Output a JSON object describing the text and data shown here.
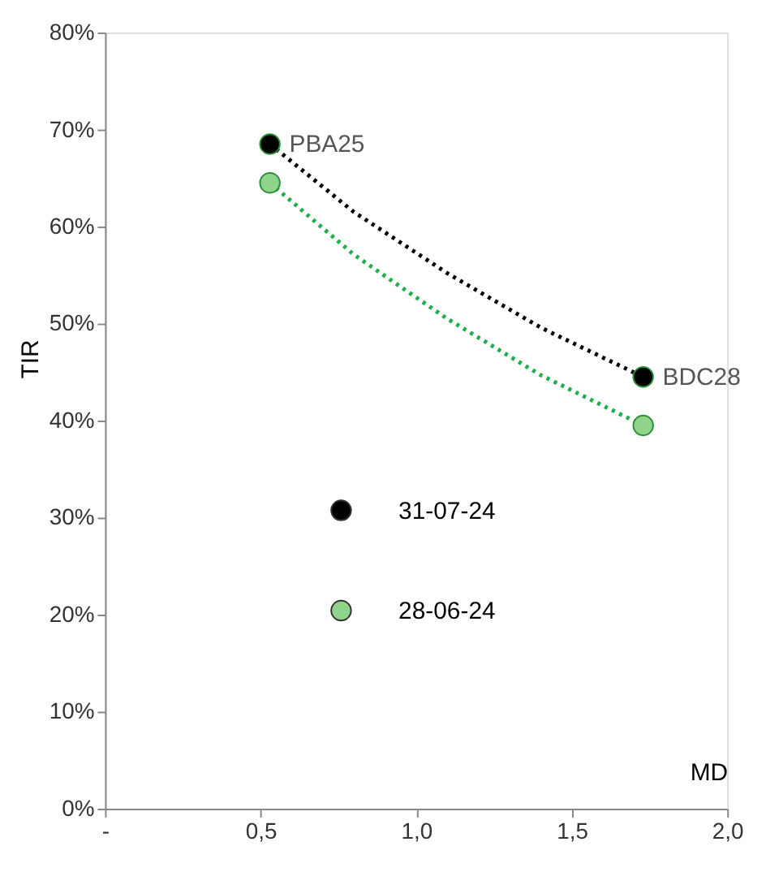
{
  "chart_data": {
    "type": "scatter",
    "xlabel": "MD",
    "ylabel": "TIR",
    "xlim": [
      0,
      2
    ],
    "xticks": [
      {
        "value": 0,
        "label": "-"
      },
      {
        "value": 0.5,
        "label": "0,5"
      },
      {
        "value": 1,
        "label": "1,0"
      },
      {
        "value": 1.5,
        "label": "1,5"
      },
      {
        "value": 2,
        "label": "2,0"
      }
    ],
    "ylim": [
      0,
      80
    ],
    "yticks": [
      {
        "value": 0,
        "label": "0%"
      },
      {
        "value": 10,
        "label": "10%"
      },
      {
        "value": 20,
        "label": "20%"
      },
      {
        "value": 30,
        "label": "30%"
      },
      {
        "value": 40,
        "label": "40%"
      },
      {
        "value": 50,
        "label": "50%"
      },
      {
        "value": 60,
        "label": "60%"
      },
      {
        "value": 70,
        "label": "70%"
      },
      {
        "value": 80,
        "label": "80%"
      }
    ],
    "grid": false,
    "legend": "bottom left",
    "series": [
      {
        "type": "line",
        "color": "#000000",
        "line_style": "dotted",
        "marker": "none",
        "x": [
          0.53,
          0.8,
          1.1,
          1.4,
          1.73
        ],
        "values": [
          68.5,
          61.5,
          55.2,
          49.6,
          44.5
        ]
      },
      {
        "type": "line",
        "color": "#1fae4b",
        "line_style": "dotted",
        "marker": "none",
        "x": [
          0.53,
          0.8,
          1.1,
          1.4,
          1.73
        ],
        "values": [
          64.5,
          57.1,
          50.5,
          44.7,
          39.5
        ]
      },
      {
        "name": "31-07-24",
        "color": "#000000",
        "marker": "circle",
        "x": [
          0.53,
          1.73
        ],
        "values": [
          68.5,
          44.5
        ]
      },
      {
        "name": "28-06-24",
        "color": "#8fd48a",
        "marker": "circle",
        "x": [
          0.53,
          1.73
        ],
        "values": [
          64.5,
          39.5
        ]
      }
    ],
    "annotations": [
      {
        "text": "PBA25",
        "x": 0.53,
        "y": 68.5
      },
      {
        "text": "BDC28",
        "x": 1.73,
        "y": 44.5
      }
    ]
  }
}
